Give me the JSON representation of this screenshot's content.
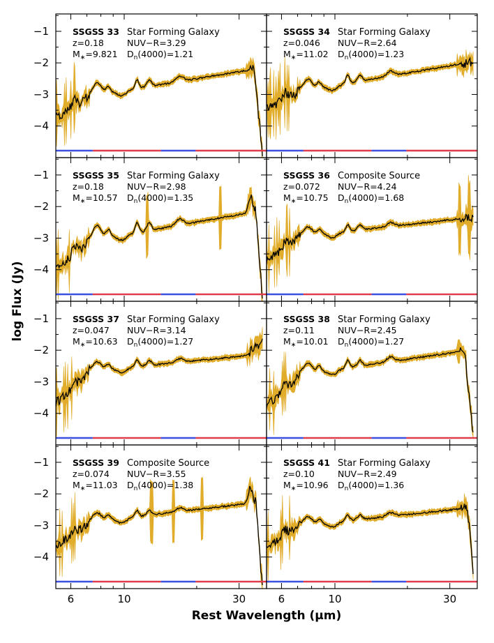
{
  "chart_data": {
    "type": "line",
    "title": "",
    "xlabel": "Rest Wavelength (μm)",
    "ylabel": "log Flux (Jy)",
    "x_scale": "log",
    "xlim": [
      5.2,
      39
    ],
    "ylim": [
      -5.0,
      -0.45
    ],
    "x_ticks": [
      6,
      10,
      30
    ],
    "y_ticks": [
      -4,
      -3,
      -2,
      -1
    ],
    "series_colors": {
      "error_band": "#e0ac2a",
      "spectrum": "#000000"
    },
    "wavelength_bar_colors": {
      "blue": "#3b4fe0",
      "red": "#e03b4a"
    },
    "wavelength_bars": [
      {
        "color": "blue",
        "x": [
          5.2,
          7.4
        ]
      },
      {
        "color": "red",
        "x": [
          7.4,
          14.2
        ]
      },
      {
        "color": "blue",
        "x": [
          14.2,
          19.8
        ]
      },
      {
        "color": "red",
        "x": [
          19.8,
          39
        ]
      }
    ],
    "panels": [
      {
        "name": "SSGSS 33",
        "class": "Star Forming Galaxy",
        "z": "z=0.18",
        "mass_prefix": "M",
        "mass_sub": "∗",
        "mass_value": "=9.821",
        "color_index": "NUV−R=3.29",
        "dn_prefix": "D",
        "dn_sub": "n",
        "dn_value": "(4000)=1.21",
        "seed": 33,
        "profile": {
          "base": -3.2,
          "slope": 1.25,
          "pah": 0.42,
          "short_drop": 0.5,
          "dips": [],
          "tail": "drop"
        }
      },
      {
        "name": "SSGSS 34",
        "class": "Star Forming Galaxy",
        "z": "z=0.046",
        "mass_prefix": "M",
        "mass_sub": "∗",
        "mass_value": "=11.02",
        "color_index": "NUV−R=2.64",
        "dn_prefix": "D",
        "dn_sub": "n",
        "dn_value": "(4000)=1.23",
        "seed": 34,
        "profile": {
          "base": -3.05,
          "slope": 1.3,
          "pah": 0.38,
          "short_drop": 0.35,
          "dips": [],
          "tail": "noisy"
        }
      },
      {
        "name": "SSGSS 35",
        "class": "Star Forming Galaxy",
        "z": "z=0.18",
        "mass_prefix": "M",
        "mass_sub": "∗",
        "mass_value": "=10.57",
        "color_index": "NUV−R=2.98",
        "dn_prefix": "D",
        "dn_sub": "n",
        "dn_value": "(4000)=1.35",
        "seed": 35,
        "profile": {
          "base": -3.25,
          "slope": 1.35,
          "pah": 0.5,
          "short_drop": 0.7,
          "dips": [
            12.5,
            25
          ],
          "tail": "peak_drop"
        }
      },
      {
        "name": "SSGSS 36",
        "class": "Composite Source",
        "z": "z=0.072",
        "mass_prefix": "M",
        "mass_sub": "∗",
        "mass_value": "=10.75",
        "color_index": "NUV−R=4.24",
        "dn_prefix": "D",
        "dn_sub": "n",
        "dn_value": "(4000)=1.68",
        "seed": 36,
        "profile": {
          "base": -3.05,
          "slope": 0.85,
          "pah": 0.32,
          "short_drop": 0.6,
          "dips": [
            33,
            36
          ],
          "tail": "dips"
        }
      },
      {
        "name": "SSGSS 37",
        "class": "Star Forming Galaxy",
        "z": "z=0.047",
        "mass_prefix": "M",
        "mass_sub": "∗",
        "mass_value": "=10.63",
        "color_index": "NUV−R=3.14",
        "dn_prefix": "D",
        "dn_sub": "n",
        "dn_value": "(4000)=1.27",
        "seed": 37,
        "profile": {
          "base": -2.75,
          "slope": 0.75,
          "pah": 0.3,
          "short_drop": 0.9,
          "dips": [],
          "tail": "rise"
        }
      },
      {
        "name": "SSGSS 38",
        "class": "Star Forming Galaxy",
        "z": "z=0.11",
        "mass_prefix": "M",
        "mass_sub": "∗",
        "mass_value": "=10.01",
        "color_index": "NUV−R=2.45",
        "dn_prefix": "D",
        "dn_sub": "n",
        "dn_value": "(4000)=1.27",
        "seed": 38,
        "profile": {
          "base": -2.9,
          "slope": 1.1,
          "pah": 0.38,
          "short_drop": 0.8,
          "dips": [],
          "tail": "drop"
        }
      },
      {
        "name": "SSGSS 39",
        "class": "Composite Source",
        "z": "z=0.074",
        "mass_prefix": "M",
        "mass_sub": "∗",
        "mass_value": "=11.03",
        "color_index": "NUV−R=3.55",
        "dn_prefix": "D",
        "dn_sub": "n",
        "dn_value": "(4000)=1.38",
        "seed": 39,
        "profile": {
          "base": -3.0,
          "slope": 0.9,
          "pah": 0.3,
          "short_drop": 0.6,
          "dips": [
            13,
            16,
            21
          ],
          "tail": "peak_drop"
        }
      },
      {
        "name": "SSGSS 41",
        "class": "Star Forming Galaxy",
        "z": "z=0.10",
        "mass_prefix": "M",
        "mass_sub": "∗",
        "mass_value": "=10.96",
        "color_index": "NUV−R=2.49",
        "dn_prefix": "D",
        "dn_sub": "n",
        "dn_value": "(4000)=1.36",
        "seed": 41,
        "profile": {
          "base": -3.1,
          "slope": 0.8,
          "pah": 0.28,
          "short_drop": 0.5,
          "dips": [],
          "tail": "noisy_drop"
        }
      }
    ]
  }
}
